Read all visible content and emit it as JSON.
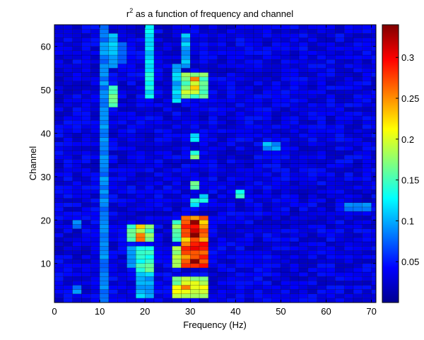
{
  "chart_data": {
    "type": "heatmap",
    "title_main": "r",
    "title_sup": "2",
    "title_rest": " as a function of frequency and channel",
    "xlabel": "Frequency (Hz)",
    "ylabel": "Channel",
    "xlim": [
      0,
      71
    ],
    "ylim": [
      1,
      65
    ],
    "xticks": [
      0,
      10,
      20,
      30,
      40,
      50,
      60,
      70
    ],
    "yticks": [
      10,
      20,
      30,
      40,
      50,
      60
    ],
    "bin_width_hz": 2,
    "n_channels": 64,
    "colormap": "jet",
    "colorbar_range": [
      0,
      0.34
    ],
    "colorbar_ticks": [
      0.05,
      0.1,
      0.15,
      0.2,
      0.25,
      0.3
    ],
    "colorbar_tick_labels": [
      "0.05",
      "0.1",
      "0.15",
      "0.2",
      "0.25",
      "0.3"
    ],
    "base_level": 0.02,
    "highlights": [
      {
        "freq_hz": [
          10,
          12
        ],
        "channels": [
          1,
          64
        ],
        "value": 0.1
      },
      {
        "freq_hz": [
          12,
          14
        ],
        "channels": [
          46,
          50
        ],
        "value": 0.18
      },
      {
        "freq_hz": [
          12,
          14
        ],
        "channels": [
          55,
          62
        ],
        "value": 0.12
      },
      {
        "freq_hz": [
          16,
          18
        ],
        "channels": [
          15,
          18
        ],
        "value": 0.18
      },
      {
        "freq_hz": [
          18,
          20
        ],
        "channels": [
          15,
          18
        ],
        "value": 0.26
      },
      {
        "freq_hz": [
          20,
          22
        ],
        "channels": [
          15,
          18
        ],
        "value": 0.2
      },
      {
        "freq_hz": [
          18,
          22
        ],
        "channels": [
          8,
          13
        ],
        "value": 0.17
      },
      {
        "freq_hz": [
          18,
          22
        ],
        "channels": [
          2,
          7
        ],
        "value": 0.12
      },
      {
        "freq_hz": [
          20,
          22
        ],
        "channels": [
          48,
          65
        ],
        "value": 0.14
      },
      {
        "freq_hz": [
          26,
          28
        ],
        "channels": [
          15,
          19
        ],
        "value": 0.2
      },
      {
        "freq_hz": [
          28,
          34
        ],
        "channels": [
          15,
          20
        ],
        "value": 0.3
      },
      {
        "freq_hz": [
          30,
          32
        ],
        "channels": [
          16,
          19
        ],
        "value": 0.34
      },
      {
        "freq_hz": [
          26,
          28
        ],
        "channels": [
          9,
          13
        ],
        "value": 0.2
      },
      {
        "freq_hz": [
          28,
          34
        ],
        "channels": [
          9,
          14
        ],
        "value": 0.3
      },
      {
        "freq_hz": [
          30,
          32
        ],
        "channels": [
          10,
          13
        ],
        "value": 0.34
      },
      {
        "freq_hz": [
          26,
          34
        ],
        "channels": [
          2,
          6
        ],
        "value": 0.22
      },
      {
        "freq_hz": [
          28,
          32
        ],
        "channels": [
          3,
          5
        ],
        "value": 0.26
      },
      {
        "freq_hz": [
          28,
          34
        ],
        "channels": [
          48,
          53
        ],
        "value": 0.2
      },
      {
        "freq_hz": [
          30,
          32
        ],
        "channels": [
          50,
          52
        ],
        "value": 0.26
      },
      {
        "freq_hz": [
          26,
          28
        ],
        "channels": [
          47,
          55
        ],
        "value": 0.12
      },
      {
        "freq_hz": [
          28,
          30
        ],
        "channels": [
          55,
          62
        ],
        "value": 0.12
      },
      {
        "freq_hz": [
          30,
          32
        ],
        "channels": [
          27,
          28
        ],
        "value": 0.2
      },
      {
        "freq_hz": [
          30,
          32
        ],
        "channels": [
          23,
          24
        ],
        "value": 0.16
      },
      {
        "freq_hz": [
          30,
          32
        ],
        "channels": [
          34,
          35
        ],
        "value": 0.18
      },
      {
        "freq_hz": [
          30,
          32
        ],
        "channels": [
          38,
          39
        ],
        "value": 0.14
      },
      {
        "freq_hz": [
          32,
          34
        ],
        "channels": [
          24,
          25
        ],
        "value": 0.14
      },
      {
        "freq_hz": [
          40,
          42
        ],
        "channels": [
          25,
          26
        ],
        "value": 0.15
      },
      {
        "freq_hz": [
          46,
          50
        ],
        "channels": [
          36,
          37
        ],
        "value": 0.11
      },
      {
        "freq_hz": [
          64,
          70
        ],
        "channels": [
          22,
          23
        ],
        "value": 0.1
      },
      {
        "freq_hz": [
          4,
          6
        ],
        "channels": [
          18,
          19
        ],
        "value": 0.1
      },
      {
        "freq_hz": [
          4,
          6
        ],
        "channels": [
          3,
          4
        ],
        "value": 0.1
      },
      {
        "freq_hz": [
          16,
          18
        ],
        "channels": [
          9,
          13
        ],
        "value": 0.12
      },
      {
        "freq_hz": [
          14,
          16
        ],
        "channels": [
          56,
          60
        ],
        "value": 0.08
      }
    ]
  }
}
